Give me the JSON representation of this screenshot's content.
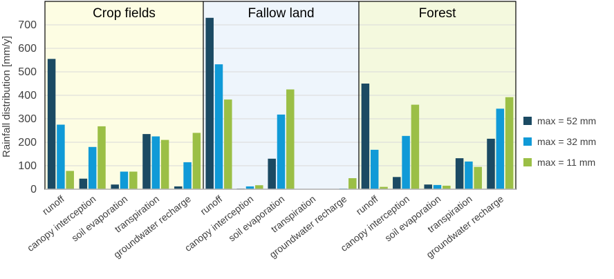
{
  "chart_data": {
    "type": "bar",
    "ylabel": "Rainfall distribution [mm/y]",
    "ylim": [
      0,
      800
    ],
    "yticks": [
      0,
      100,
      200,
      300,
      400,
      500,
      600,
      700
    ],
    "grid": true,
    "legend_position": "right",
    "categories": [
      "runoff",
      "canopy interception",
      "soil evaporation",
      "transpiration",
      "groundwater recharge"
    ],
    "series_names": [
      "max = 52 mm",
      "max = 32 mm",
      "max = 11 mm"
    ],
    "colors": [
      "#1b4a63",
      "#109ad7",
      "#9bbf46"
    ],
    "panels": [
      {
        "title": "Crop fields",
        "background": "#fdfde3",
        "values": [
          [
            555,
            45,
            20,
            235,
            12
          ],
          [
            275,
            180,
            75,
            225,
            115
          ],
          [
            78,
            268,
            75,
            210,
            240
          ]
        ]
      },
      {
        "title": "Fallow land",
        "background": "#eef5fc",
        "values": [
          [
            730,
            3,
            130,
            0,
            0
          ],
          [
            532,
            12,
            318,
            0,
            3
          ],
          [
            382,
            17,
            425,
            0,
            47
          ]
        ]
      },
      {
        "title": "Forest",
        "background": "#f4f9de",
        "values": [
          [
            450,
            52,
            20,
            132,
            215
          ],
          [
            168,
            227,
            18,
            118,
            343
          ],
          [
            10,
            360,
            15,
            95,
            392
          ]
        ]
      }
    ]
  }
}
